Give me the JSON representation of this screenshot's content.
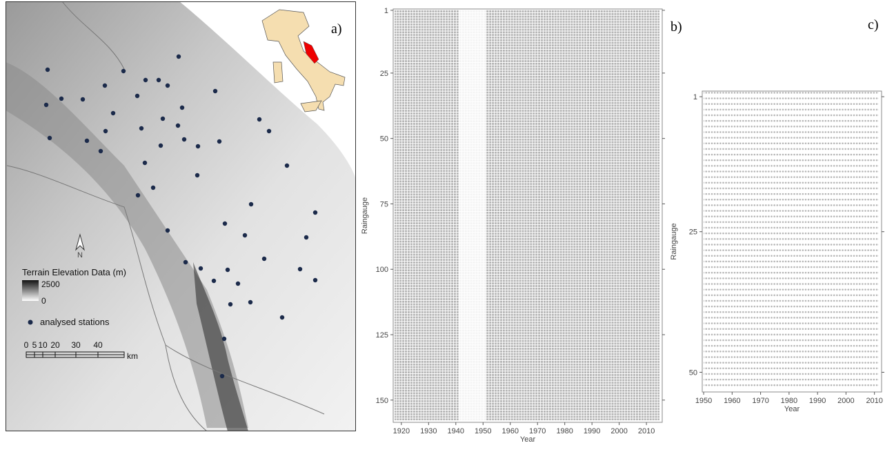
{
  "map": {
    "label": "a)",
    "legend_title": "Terrain Elevation Data (m)",
    "legend_max": "2500",
    "legend_min": "0",
    "stations_label": "analysed stations",
    "north": "N",
    "scale_ticks": [
      "0",
      "5",
      "10",
      "20",
      "30",
      "40"
    ],
    "scale_unit": "km"
  },
  "chart_data": [
    {
      "type": "raster",
      "label": "b)",
      "x_label": "Year",
      "y_label": "Raingauge",
      "xlim": [
        1917,
        2015.8
      ],
      "xticks": [
        1920,
        1930,
        1940,
        1950,
        1960,
        1970,
        1980,
        1990,
        2000,
        2010
      ],
      "ylim": [
        0.5,
        158.5
      ],
      "yticks": [
        1,
        25,
        50,
        75,
        100,
        125,
        150
      ],
      "color": "#b4b4b4"
    },
    {
      "type": "raster",
      "label": "c)",
      "x_label": "Year",
      "y_label": "Raingauge",
      "xlim": [
        1949.5,
        2012.5
      ],
      "xticks": [
        1950,
        1960,
        1970,
        1980,
        1990,
        2000,
        2010
      ],
      "ylim": [
        0,
        53.5
      ],
      "yticks": [
        1,
        25,
        50
      ],
      "color": "#b4b4b4"
    }
  ]
}
